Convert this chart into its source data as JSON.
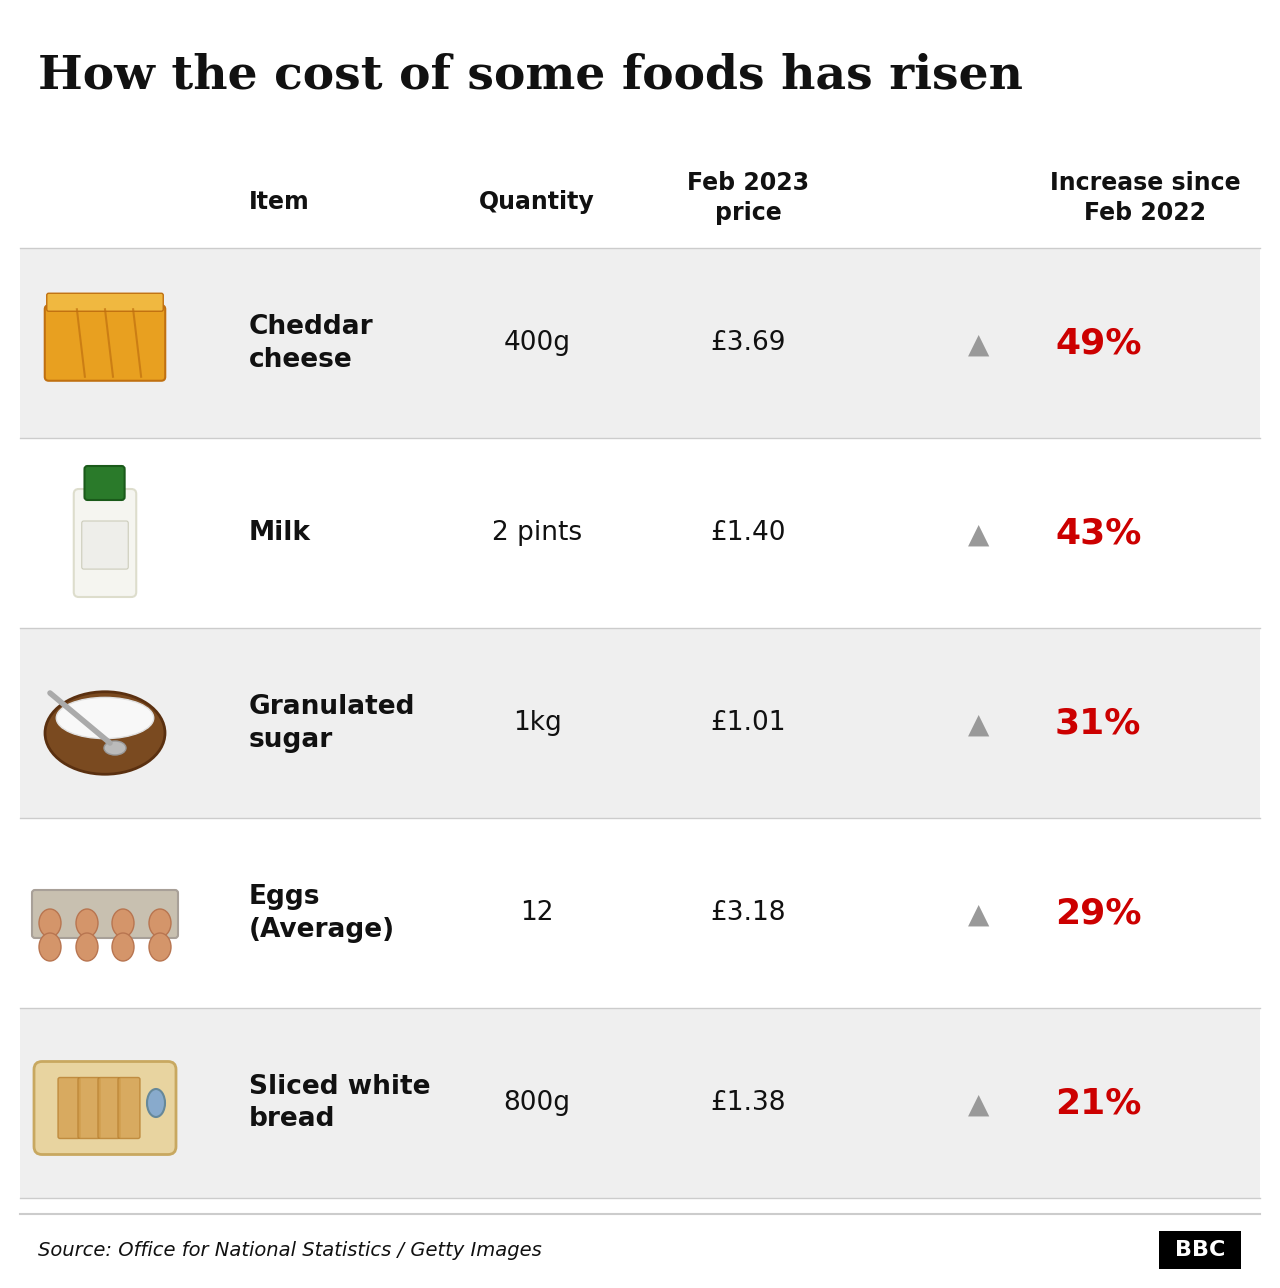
{
  "title": "How the cost of some foods has risen",
  "source": "Source: Office for National Statistics / Getty Images",
  "headers": [
    "Item",
    "Quantity",
    "Feb 2023\nprice",
    "Increase since\nFeb 2022"
  ],
  "rows": [
    {
      "item": "Cheddar\ncheese",
      "quantity": "400g",
      "price": "£3.69",
      "increase": "49%"
    },
    {
      "item": "Milk",
      "quantity": "2 pints",
      "price": "£1.40",
      "increase": "43%"
    },
    {
      "item": "Granulated\nsugar",
      "quantity": "1kg",
      "price": "£1.01",
      "increase": "31%"
    },
    {
      "item": "Eggs\n(Average)",
      "quantity": "12",
      "price": "£3.18",
      "increase": "29%"
    },
    {
      "item": "Sliced white\nbread",
      "quantity": "800g",
      "price": "£1.38",
      "increase": "21%"
    }
  ],
  "bg_color_white": "#ffffff",
  "bg_color_gray": "#efefef",
  "increase_color": "#cc0000",
  "arrow_color": "#999999",
  "text_color_dark": "#111111",
  "divider_color": "#cccccc",
  "bbc_bg": "#000000",
  "bbc_text": "#ffffff",
  "title_fontsize": 34,
  "header_fontsize": 17,
  "cell_fontsize": 19,
  "increase_fontsize": 26,
  "col_item": 0.195,
  "col_quantity": 0.42,
  "col_price": 0.585,
  "col_arrow": 0.765,
  "col_pct": 0.815,
  "header_col_item": 0.195,
  "header_col_quantity": 0.42,
  "header_col_price": 0.585,
  "header_col_increase": 0.895
}
